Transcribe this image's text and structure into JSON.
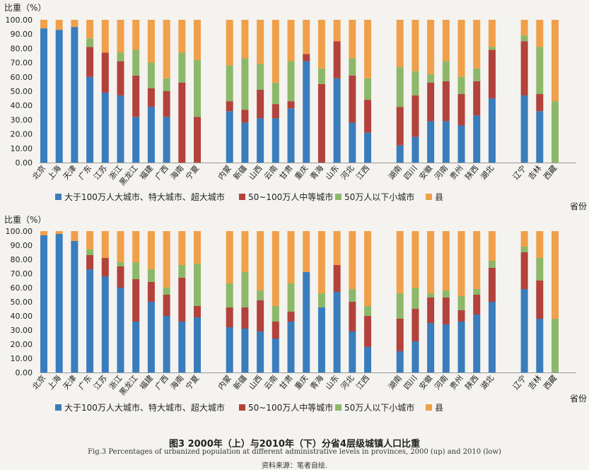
{
  "caption": {
    "title": "图3   2000年（上）与2010年（下）分省4层级城镇人口比重",
    "english": "Fig.3   Percentages of urbanized population at different administrative levels in provinces, 2000 (up) and 2010 (low)",
    "source": "资料来源：笔者自绘."
  },
  "colors": {
    "large": "#3a7dbd",
    "medium": "#b3413c",
    "small": "#8db86a",
    "county": "#f0a04b"
  },
  "chart_data": [
    {
      "type": "bar",
      "stacked": true,
      "ylabel": "比重（%）",
      "xlabel": "省份",
      "ylim": [
        0,
        100
      ],
      "ytick_labels": [
        "0.00",
        "10.00",
        "20.00",
        "30.00",
        "40.00",
        "50.00",
        "60.00",
        "70.00",
        "80.00",
        "90.00",
        "100.00"
      ],
      "groups": [
        [
          "北京",
          "上海",
          "天津",
          "广东",
          "江苏",
          "浙江",
          "黑龙江",
          "福建",
          "广西",
          "海南",
          "宁夏"
        ],
        [
          "内蒙",
          "新疆",
          "山西",
          "云南",
          "甘肃",
          "重庆",
          "青海",
          "山东",
          "河北",
          "江西"
        ],
        [
          "湖南",
          "四川",
          "安徽",
          "河南",
          "贵州",
          "陕西",
          "湖北"
        ],
        [
          "辽宁",
          "吉林",
          "西藏"
        ]
      ],
      "categories": [
        "北京",
        "上海",
        "天津",
        "广东",
        "江苏",
        "浙江",
        "黑龙江",
        "福建",
        "广西",
        "海南",
        "宁夏",
        "内蒙",
        "新疆",
        "山西",
        "云南",
        "甘肃",
        "重庆",
        "青海",
        "山东",
        "河北",
        "江西",
        "湖南",
        "四川",
        "安徽",
        "河南",
        "贵州",
        "陕西",
        "湖北",
        "辽宁",
        "吉林",
        "西藏"
      ],
      "series": [
        {
          "name": "大于100万人大城市、特大城市、超大城市",
          "values": [
            94,
            93,
            95,
            60,
            49,
            47,
            32,
            39,
            32,
            0,
            0,
            36,
            28,
            31,
            31,
            38,
            71,
            0,
            59,
            28,
            21,
            12,
            18,
            29,
            29,
            26,
            33,
            45,
            47,
            36,
            0
          ]
        },
        {
          "name": "50~100万人中等城市",
          "values": [
            0,
            0,
            0,
            21,
            28,
            24,
            29,
            13,
            18,
            56,
            32,
            7,
            9,
            20,
            10,
            5,
            5,
            55,
            26,
            33,
            23,
            27,
            29,
            27,
            28,
            22,
            24,
            34,
            38,
            12,
            0
          ]
        },
        {
          "name": "50万人以下小城市",
          "values": [
            0,
            0,
            0,
            6,
            0,
            6,
            18,
            18,
            9,
            21,
            40,
            25,
            36,
            18,
            15,
            28,
            0,
            11,
            0,
            12,
            15,
            28,
            17,
            6,
            14,
            12,
            9,
            2,
            4,
            33,
            43
          ]
        },
        {
          "name": "县",
          "values": [
            6,
            7,
            5,
            13,
            23,
            23,
            21,
            30,
            41,
            23,
            28,
            32,
            27,
            31,
            44,
            29,
            24,
            34,
            15,
            27,
            41,
            33,
            36,
            38,
            29,
            40,
            34,
            19,
            11,
            19,
            57
          ]
        }
      ]
    },
    {
      "type": "bar",
      "stacked": true,
      "ylabel": "比重（%）",
      "xlabel": "省份",
      "ylim": [
        0,
        100
      ],
      "ytick_labels": [
        "0.00",
        "10.00",
        "20.00",
        "30.00",
        "40.00",
        "50.00",
        "60.00",
        "70.00",
        "80.00",
        "90.00",
        "100.00"
      ],
      "groups": [
        [
          "北京",
          "上海",
          "天津",
          "广东",
          "江苏",
          "浙江",
          "黑龙江",
          "福建",
          "广西",
          "海南",
          "宁夏"
        ],
        [
          "内蒙",
          "新疆",
          "山西",
          "云南",
          "甘肃",
          "重庆",
          "青海",
          "山东",
          "河北",
          "江西"
        ],
        [
          "湖南",
          "四川",
          "安徽",
          "河南",
          "贵州",
          "陕西",
          "湖北"
        ],
        [
          "辽宁",
          "吉林",
          "西藏"
        ]
      ],
      "categories": [
        "北京",
        "上海",
        "天津",
        "广东",
        "江苏",
        "浙江",
        "黑龙江",
        "福建",
        "广西",
        "海南",
        "宁夏",
        "内蒙",
        "新疆",
        "山西",
        "云南",
        "甘肃",
        "重庆",
        "青海",
        "山东",
        "河北",
        "江西",
        "湖南",
        "四川",
        "安徽",
        "河南",
        "贵州",
        "陕西",
        "湖北",
        "辽宁",
        "吉林",
        "西藏"
      ],
      "series": [
        {
          "name": "大于100万人大城市、特大城市、超大城市",
          "values": [
            97,
            98,
            93,
            73,
            68,
            60,
            36,
            50,
            40,
            36,
            39,
            32,
            31,
            29,
            24,
            36,
            71,
            46,
            57,
            29,
            18,
            15,
            22,
            35,
            34,
            36,
            41,
            50,
            59,
            38,
            0
          ]
        },
        {
          "name": "50~100万人中等城市",
          "values": [
            0,
            0,
            0,
            10,
            13,
            15,
            30,
            14,
            15,
            31,
            8,
            14,
            15,
            22,
            12,
            7,
            0,
            0,
            19,
            21,
            22,
            23,
            23,
            18,
            19,
            8,
            14,
            24,
            26,
            27,
            0
          ]
        },
        {
          "name": "50万人以下小城市",
          "values": [
            0,
            0,
            0,
            4,
            0,
            3,
            12,
            9,
            5,
            9,
            30,
            17,
            25,
            7,
            11,
            20,
            0,
            10,
            0,
            9,
            7,
            18,
            15,
            3,
            5,
            10,
            4,
            5,
            4,
            16,
            38
          ]
        },
        {
          "name": "县",
          "values": [
            3,
            2,
            7,
            13,
            19,
            22,
            22,
            27,
            40,
            24,
            23,
            37,
            29,
            42,
            53,
            37,
            29,
            44,
            24,
            41,
            53,
            44,
            40,
            44,
            42,
            46,
            41,
            21,
            11,
            19,
            62
          ]
        }
      ]
    }
  ]
}
